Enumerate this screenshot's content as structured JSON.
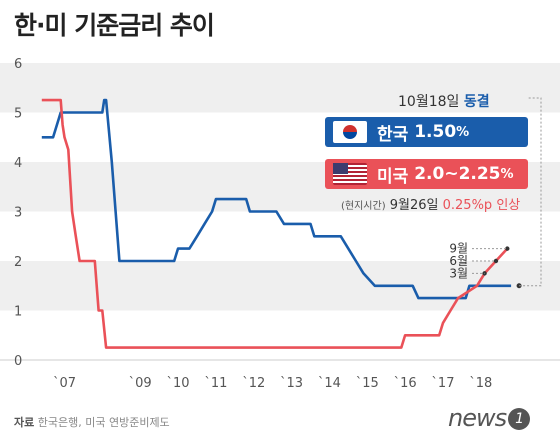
{
  "title": "한·미 기준금리 추이",
  "chart_data": {
    "type": "line",
    "ylim": [
      0,
      6
    ],
    "yticks": [
      0,
      1,
      2,
      3,
      4,
      5,
      6
    ],
    "xlim": [
      2006.3,
      2019.3
    ],
    "xticks": [
      {
        "x": 2007,
        "label": "`07"
      },
      {
        "x": 2009,
        "label": "`09"
      },
      {
        "x": 2010,
        "label": "`10"
      },
      {
        "x": 2011,
        "label": "`11"
      },
      {
        "x": 2012,
        "label": "`12"
      },
      {
        "x": 2013,
        "label": "`13"
      },
      {
        "x": 2014,
        "label": "`14"
      },
      {
        "x": 2015,
        "label": "`15"
      },
      {
        "x": 2016,
        "label": "`16"
      },
      {
        "x": 2017,
        "label": "`17"
      },
      {
        "x": 2018,
        "label": "`18"
      }
    ],
    "grid": "horizontal-bands",
    "series": [
      {
        "name": "한국",
        "color": "#1a5dab",
        "points": [
          [
            2006.4,
            4.5
          ],
          [
            2006.7,
            4.5
          ],
          [
            2006.9,
            5.0
          ],
          [
            2008.0,
            5.0
          ],
          [
            2008.05,
            5.25
          ],
          [
            2008.1,
            5.25
          ],
          [
            2008.25,
            4.0
          ],
          [
            2008.35,
            3.0
          ],
          [
            2008.45,
            2.0
          ],
          [
            2009.9,
            2.0
          ],
          [
            2010.0,
            2.25
          ],
          [
            2010.3,
            2.25
          ],
          [
            2010.5,
            2.5
          ],
          [
            2010.7,
            2.75
          ],
          [
            2010.9,
            3.0
          ],
          [
            2011.0,
            3.25
          ],
          [
            2011.8,
            3.25
          ],
          [
            2011.9,
            3.0
          ],
          [
            2012.6,
            3.0
          ],
          [
            2012.8,
            2.75
          ],
          [
            2013.5,
            2.75
          ],
          [
            2013.6,
            2.5
          ],
          [
            2014.3,
            2.5
          ],
          [
            2014.5,
            2.25
          ],
          [
            2014.7,
            2.0
          ],
          [
            2014.9,
            1.75
          ],
          [
            2015.2,
            1.5
          ],
          [
            2016.2,
            1.5
          ],
          [
            2016.35,
            1.25
          ],
          [
            2017.6,
            1.25
          ],
          [
            2017.7,
            1.5
          ],
          [
            2018.8,
            1.5
          ]
        ]
      },
      {
        "name": "미국",
        "color": "#ea5158",
        "points": [
          [
            2006.4,
            5.25
          ],
          [
            2006.9,
            5.25
          ],
          [
            2006.95,
            4.75
          ],
          [
            2007.0,
            4.5
          ],
          [
            2007.1,
            4.25
          ],
          [
            2007.2,
            3.0
          ],
          [
            2007.3,
            2.5
          ],
          [
            2007.4,
            2.0
          ],
          [
            2007.8,
            2.0
          ],
          [
            2007.85,
            1.5
          ],
          [
            2007.9,
            1.0
          ],
          [
            2008.0,
            1.0
          ],
          [
            2008.1,
            0.25
          ],
          [
            2015.9,
            0.25
          ],
          [
            2016.0,
            0.5
          ],
          [
            2016.9,
            0.5
          ],
          [
            2017.0,
            0.75
          ],
          [
            2017.2,
            1.0
          ],
          [
            2017.4,
            1.25
          ],
          [
            2017.9,
            1.5
          ],
          [
            2018.1,
            1.75
          ],
          [
            2018.4,
            2.0
          ],
          [
            2018.7,
            2.25
          ]
        ]
      }
    ],
    "annotations": {
      "months": [
        "9월",
        "6월",
        "3월"
      ]
    }
  },
  "legend": {
    "kr": {
      "name": "한국",
      "value": "1.50",
      "unit": "%"
    },
    "us": {
      "name": "미국",
      "value": "2.0~2.25",
      "unit": "%"
    }
  },
  "kr_note": {
    "date": "10월18일",
    "status": "동결"
  },
  "us_note": {
    "prefix": "(현지시간)",
    "date": "9월26일",
    "change": "0.25%p",
    "action": "인상"
  },
  "source": {
    "label": "자료",
    "text": "한국은행, 미국 연방준비제도"
  },
  "logo": {
    "text": "news",
    "mark": "1"
  }
}
